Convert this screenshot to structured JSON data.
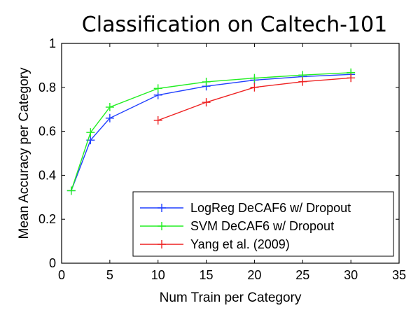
{
  "chart_data": {
    "type": "line",
    "title": "Classification on Caltech-101",
    "xlabel": "Num Train per Category",
    "ylabel": "Mean Accuracy per Category",
    "xlim": [
      0,
      35
    ],
    "ylim": [
      0,
      1
    ],
    "xticks": [
      0,
      5,
      10,
      15,
      20,
      25,
      30,
      35
    ],
    "yticks": [
      0,
      0.2,
      0.4,
      0.6,
      0.8,
      1
    ],
    "xtick_labels": [
      "0",
      "5",
      "10",
      "15",
      "20",
      "25",
      "30",
      "35"
    ],
    "ytick_labels": [
      "0",
      "0.2",
      "0.4",
      "0.6",
      "0.8",
      "1"
    ],
    "grid": false,
    "legend_position": "bottom-right",
    "series": [
      {
        "name": "LogReg DeCAF6 w/ Dropout",
        "color": "#1f3fff",
        "x": [
          1,
          3,
          5,
          10,
          15,
          20,
          25,
          30
        ],
        "y": [
          0.33,
          0.56,
          0.66,
          0.765,
          0.805,
          0.833,
          0.849,
          0.859
        ]
      },
      {
        "name": "SVM DeCAF6 w/ Dropout",
        "color": "#22ee22",
        "x": [
          1,
          3,
          5,
          10,
          15,
          20,
          25,
          30
        ],
        "y": [
          0.33,
          0.595,
          0.71,
          0.795,
          0.825,
          0.842,
          0.856,
          0.867
        ]
      },
      {
        "name": "Yang et al. (2009)",
        "color": "#ee2222",
        "x": [
          10,
          15,
          20,
          25,
          30
        ],
        "y": [
          0.65,
          0.732,
          0.8,
          0.826,
          0.843
        ]
      }
    ]
  }
}
